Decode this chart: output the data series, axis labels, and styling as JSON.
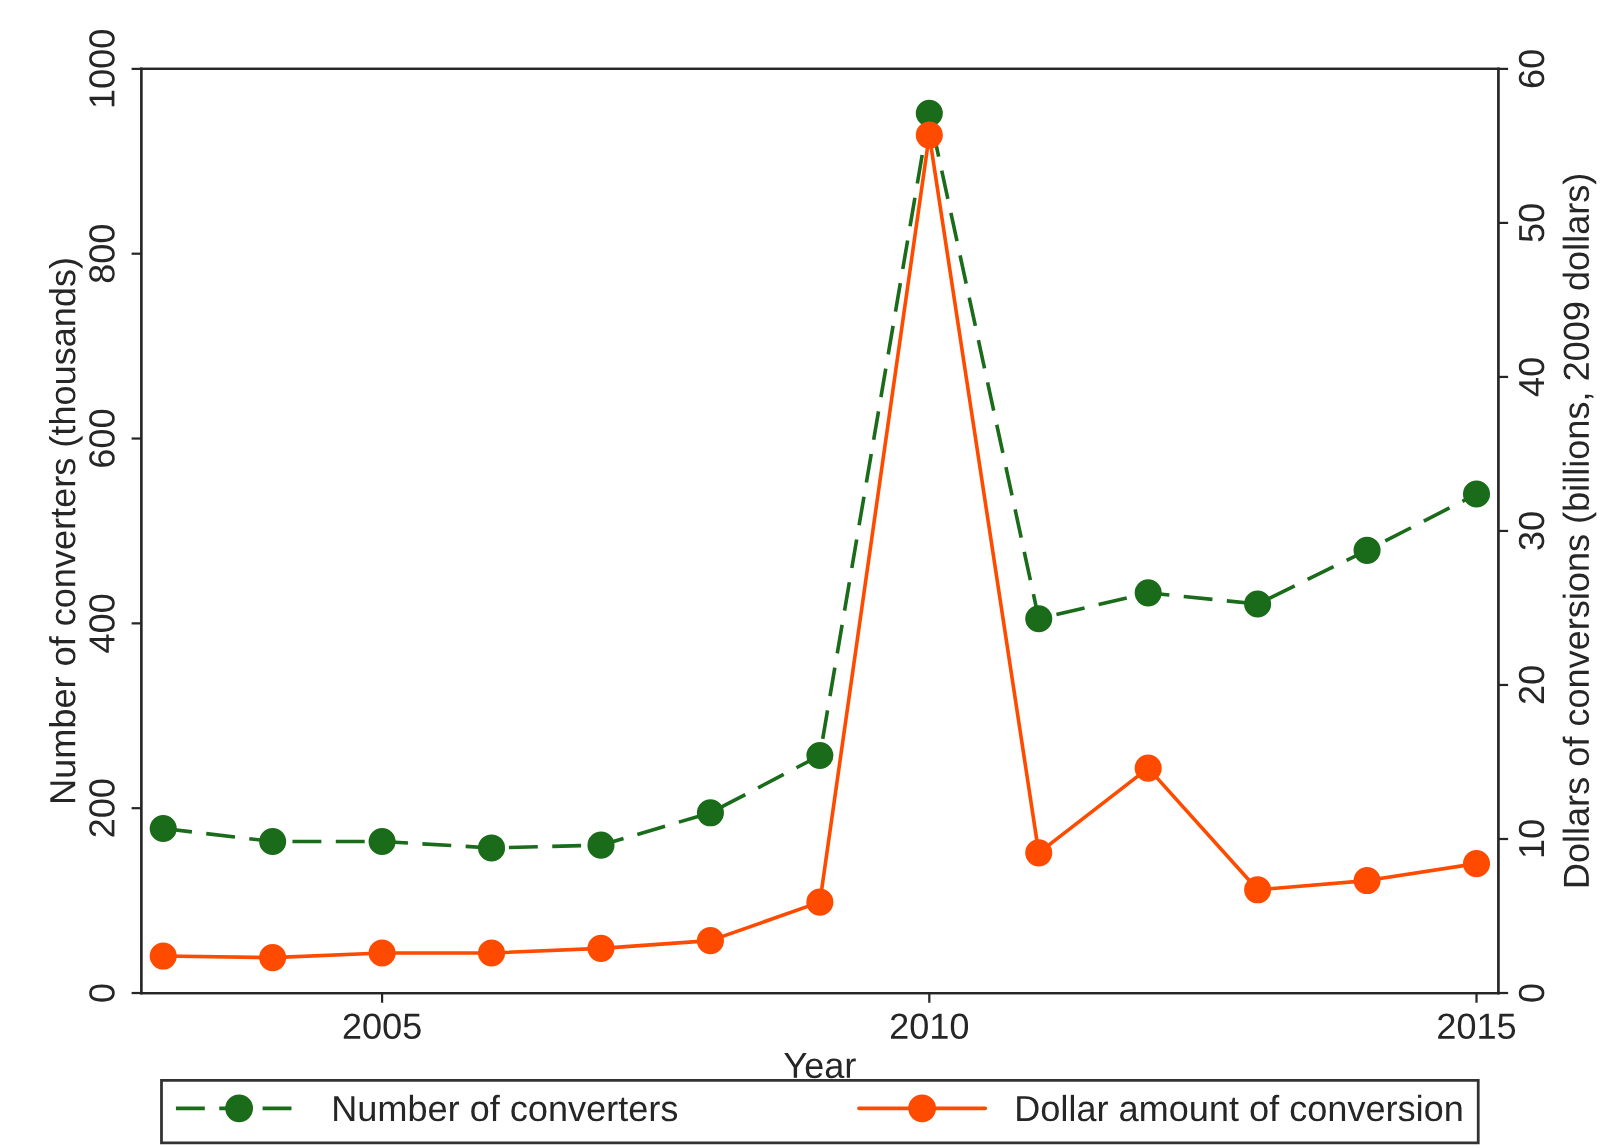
{
  "chart_data": {
    "type": "line",
    "xlabel": "Year",
    "ylabel": "Number of converters (thousands)",
    "y2label": "Dollars of conversions (billions, 2009 dollars)",
    "x": [
      2003,
      2004,
      2005,
      2006,
      2007,
      2008,
      2009,
      2010,
      2011,
      2012,
      2013,
      2014,
      2015
    ],
    "series": [
      {
        "name": "Number of converters",
        "color": "#1a6b1a",
        "line_style": "dashed",
        "values": [
          178,
          164,
          164,
          157,
          160,
          195,
          257,
          952,
          405,
          433,
          421,
          479,
          540
        ]
      },
      {
        "name": "Dollar amount of conversion",
        "color": "#ff4b00",
        "line_style": "solid",
        "axis": "y2",
        "values": [
          2.4,
          2.3,
          2.6,
          2.6,
          2.9,
          3.4,
          5.9,
          55.7,
          9.1,
          14.6,
          6.7,
          7.3,
          8.4
        ]
      }
    ],
    "xlim": [
      2002.8,
      2015.2
    ],
    "xticks": [
      2005,
      2010,
      2015
    ],
    "ylim": [
      0,
      1000
    ],
    "yticks": [
      0,
      200,
      400,
      600,
      800,
      1000
    ],
    "y2lim": [
      0,
      60
    ],
    "y2ticks": [
      0,
      10,
      20,
      30,
      40,
      50,
      60
    ],
    "marker": "circle",
    "grid": false,
    "legend": "bottom"
  }
}
